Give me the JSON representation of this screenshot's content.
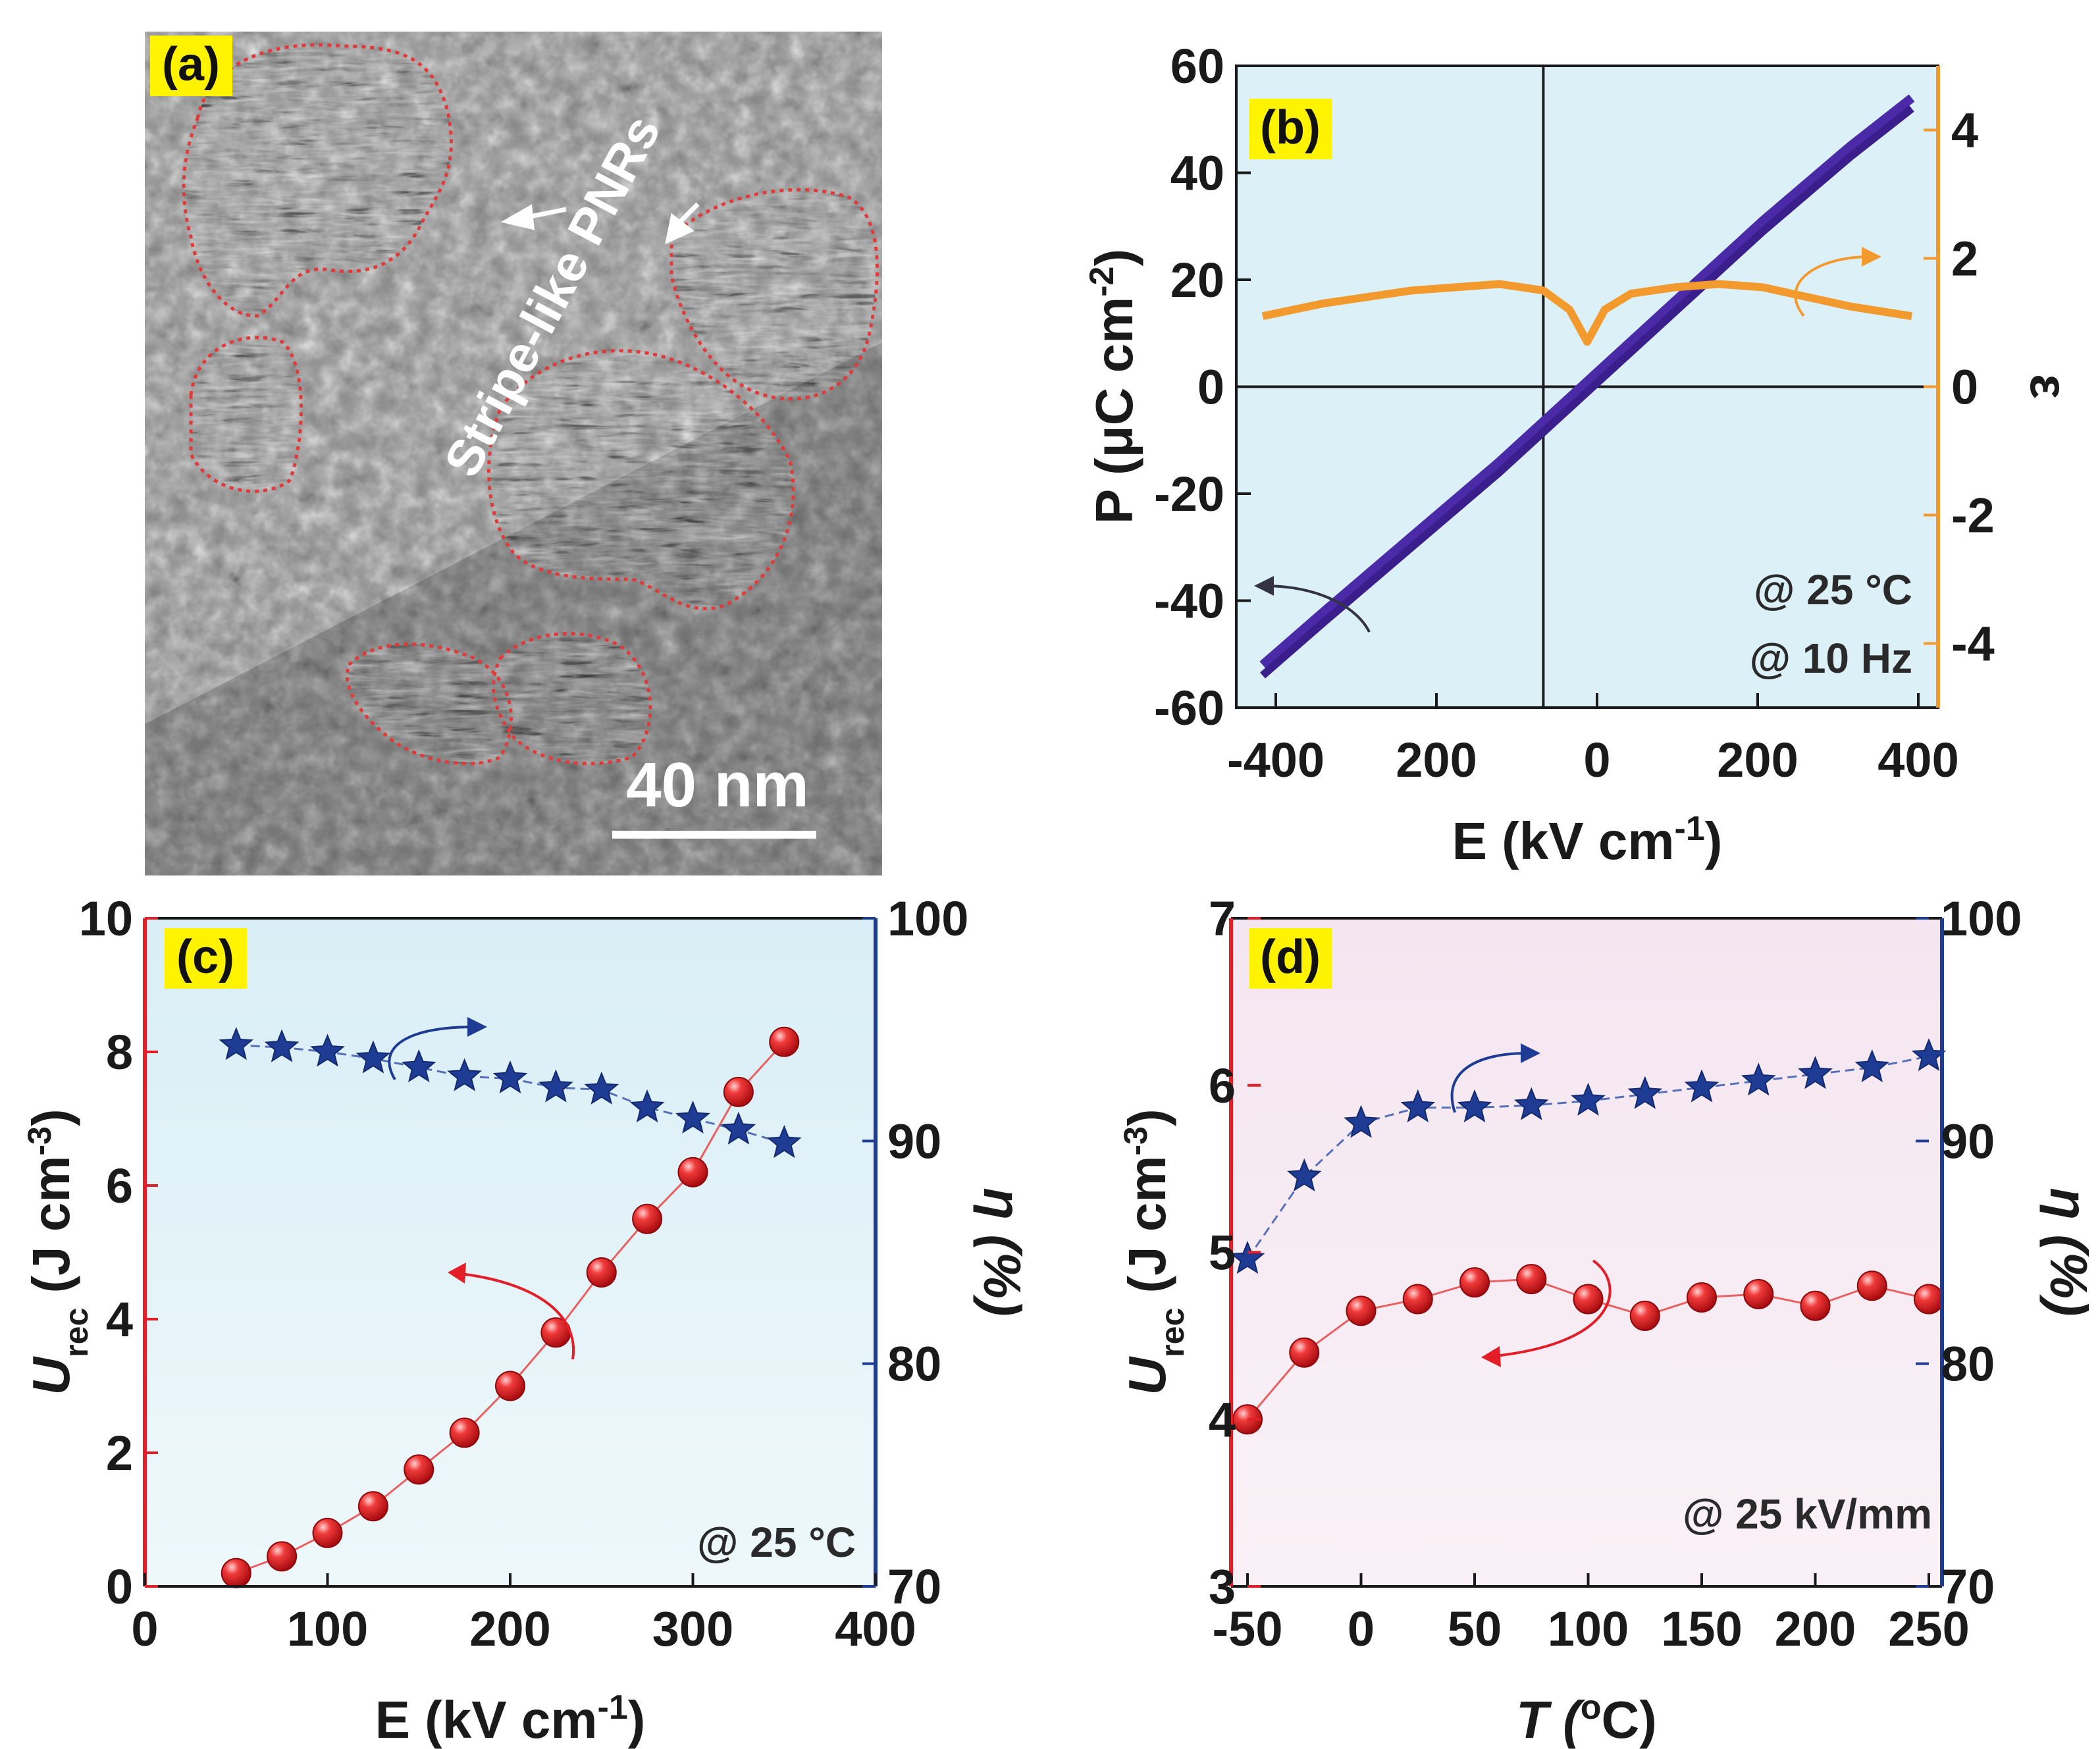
{
  "panel_labels": {
    "a": "(a)",
    "b": "(b)",
    "c": "(c)",
    "d": "(d)"
  },
  "panel_a": {
    "annotation": "Stripe-like PNRs",
    "scale_bar": "40 nm"
  },
  "chart_data": [
    {
      "id": "b",
      "type": "line",
      "xlabel": "E (kV cm",
      "xlabel_sup": "-1",
      "xlabel_tail": ")",
      "ylabel": "P (μC cm",
      "ylabel_sup": "-2",
      "ylabel_tail": ")",
      "y2label": "ε",
      "xlim": [
        -400,
        400
      ],
      "ylim": [
        -60,
        60
      ],
      "y2lim": [
        -5,
        5
      ],
      "x_ticks": [
        "-400",
        "200",
        "0",
        "200",
        "400"
      ],
      "y_ticks": [
        "60",
        "40",
        "20",
        "0",
        "-20",
        "-40",
        "-60"
      ],
      "y2_ticks": [
        "4",
        "2",
        "0",
        "-2",
        "-4"
      ],
      "annotations": [
        "@ 25 °C",
        "@ 10 Hz"
      ],
      "series": [
        {
          "name": "P-E loop",
          "axis": "left",
          "color": "#4b2aa8",
          "x": [
            -370,
            -300,
            -200,
            -100,
            0,
            100,
            200,
            300,
            370
          ],
          "y": [
            -53,
            -43,
            -29,
            -15,
            0,
            15,
            30,
            44,
            53
          ]
        },
        {
          "name": "dielectric",
          "axis": "right",
          "color": "#f29a2e",
          "x": [
            -370,
            -300,
            -250,
            -200,
            -150,
            -100,
            -50,
            -20,
            0,
            20,
            50,
            100,
            150,
            200,
            250,
            300,
            370
          ],
          "y": [
            1.1,
            1.3,
            1.4,
            1.5,
            1.55,
            1.6,
            1.5,
            1.2,
            0.7,
            1.2,
            1.45,
            1.55,
            1.6,
            1.55,
            1.4,
            1.25,
            1.1
          ]
        }
      ]
    },
    {
      "id": "c",
      "type": "scatter",
      "xlabel": "E (kV cm",
      "xlabel_sup": "-1",
      "xlabel_tail": ")",
      "ylabel": "U",
      "ylabel_sub": "rec",
      "ylabel_tail": " (J cm",
      "ylabel_sup": "-3",
      "ylabel_end": ")",
      "y2label": "η (%)",
      "xlim": [
        0,
        400
      ],
      "ylim": [
        0,
        10
      ],
      "y2lim": [
        70,
        100
      ],
      "x_ticks": [
        "0",
        "100",
        "200",
        "300",
        "400"
      ],
      "y_ticks": [
        "10",
        "8",
        "6",
        "4",
        "2",
        "0"
      ],
      "y2_ticks": [
        "100",
        "90",
        "80",
        "70"
      ],
      "annotation": "@ 25 °C",
      "series": [
        {
          "name": "U_rec",
          "axis": "left",
          "marker": "sphere",
          "color": "#e41e26",
          "x": [
            50,
            75,
            100,
            125,
            150,
            175,
            200,
            225,
            250,
            275,
            300,
            325,
            350
          ],
          "y": [
            0.2,
            0.45,
            0.8,
            1.2,
            1.75,
            2.3,
            3.0,
            3.8,
            4.7,
            5.5,
            6.2,
            7.4,
            8.15
          ]
        },
        {
          "name": "η",
          "axis": "right",
          "marker": "star",
          "color": "#1f3c94",
          "x": [
            50,
            75,
            100,
            125,
            150,
            175,
            200,
            225,
            250,
            275,
            300,
            325,
            350
          ],
          "y": [
            94.3,
            94.2,
            94.0,
            93.7,
            93.3,
            92.9,
            92.8,
            92.4,
            92.3,
            91.5,
            91.0,
            90.5,
            89.9
          ]
        }
      ]
    },
    {
      "id": "d",
      "type": "scatter",
      "xlabel": "T (",
      "xlabel_sup": "o",
      "xlabel_tail": "C)",
      "ylabel": "U",
      "ylabel_sub": "rec",
      "ylabel_tail": " (J cm",
      "ylabel_sup": "-3",
      "ylabel_end": ")",
      "y2label": "η (%)",
      "xlim": [
        -50,
        250
      ],
      "ylim": [
        3,
        7
      ],
      "y2lim": [
        70,
        100
      ],
      "x_ticks": [
        "-50",
        "0",
        "50",
        "100",
        "150",
        "200",
        "250"
      ],
      "y_ticks": [
        "7",
        "6",
        "5",
        "4",
        "3"
      ],
      "y2_ticks": [
        "100",
        "90",
        "80",
        "70"
      ],
      "annotation": "@ 25 kV/mm",
      "series": [
        {
          "name": "U_rec",
          "axis": "left",
          "marker": "sphere",
          "color": "#e41e26",
          "x": [
            -50,
            -25,
            0,
            25,
            50,
            75,
            100,
            125,
            150,
            175,
            200,
            225,
            250
          ],
          "y": [
            4.0,
            4.4,
            4.65,
            4.72,
            4.82,
            4.84,
            4.72,
            4.62,
            4.73,
            4.75,
            4.68,
            4.8,
            4.72
          ]
        },
        {
          "name": "η",
          "axis": "right",
          "marker": "star",
          "color": "#1f3c94",
          "x": [
            -50,
            -25,
            0,
            25,
            50,
            75,
            100,
            125,
            150,
            175,
            200,
            225,
            250
          ],
          "y": [
            84.7,
            88.4,
            90.8,
            91.5,
            91.5,
            91.6,
            91.8,
            92.1,
            92.4,
            92.7,
            93.0,
            93.3,
            93.8
          ]
        }
      ]
    }
  ]
}
